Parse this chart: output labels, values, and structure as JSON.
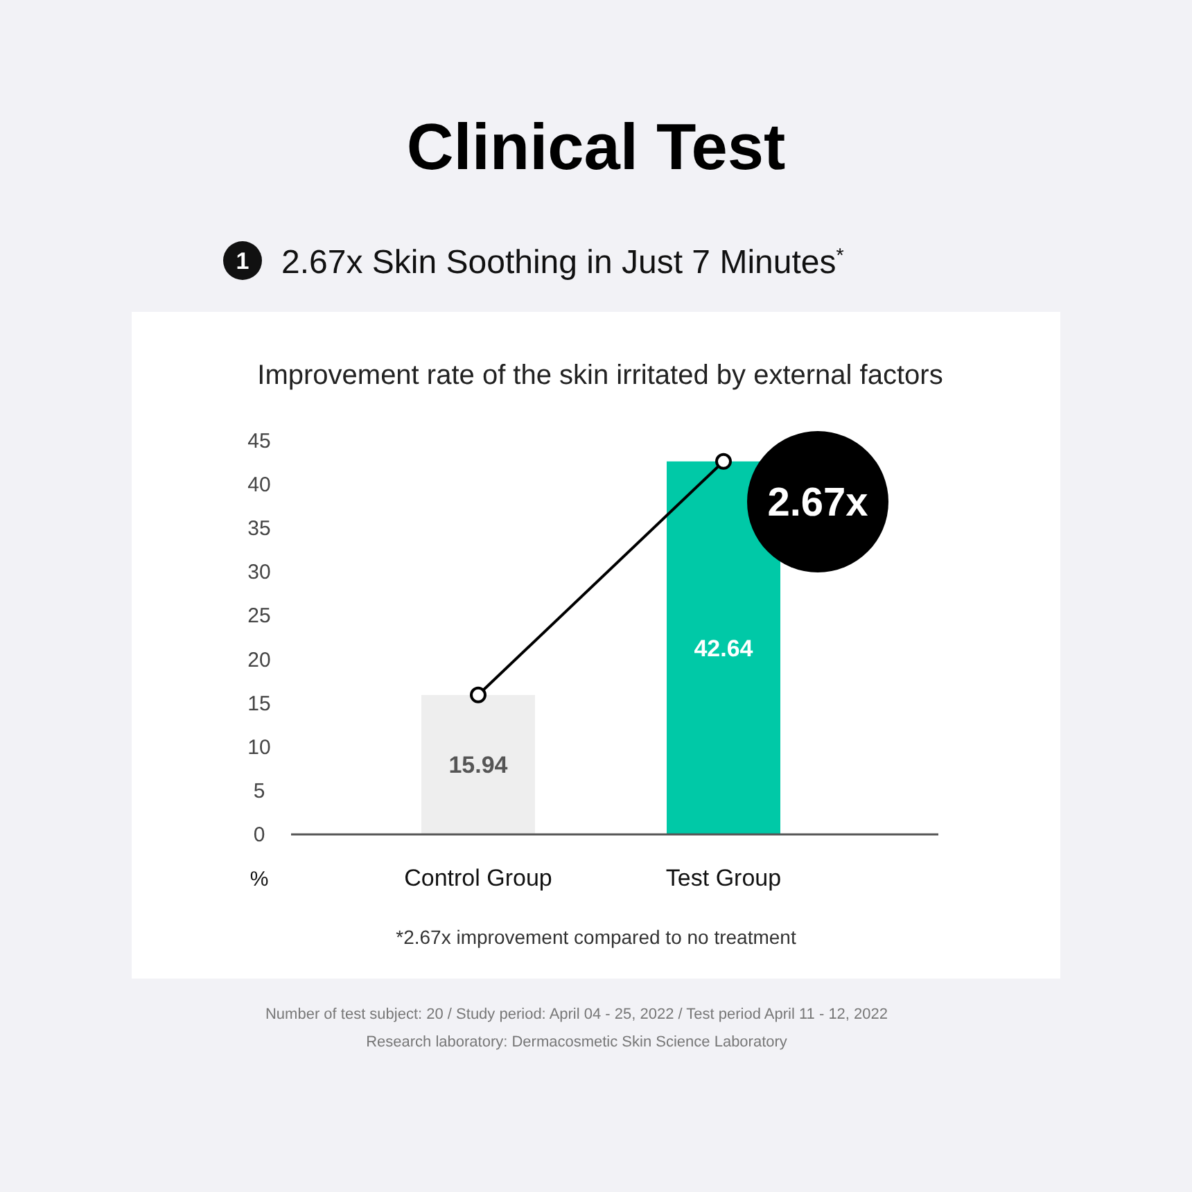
{
  "chart_data": {
    "type": "bar",
    "title": "Clinical Test",
    "subtitle": "2.67x Skin Soothing in Just 7 Minutes$^{*}$",
    "legend_title": "Improvement rate of the skin irritated by external factors",
    "ylabel": "%",
    "categories": [
      "Control Group",
      "Test Group"
    ],
    "series": [
      {
        "colors": [
          "#eeeeee",
          "#00c9a7"
        ],
        "values": [
          15.94,
          42.64
        ],
        "value_labels": [
          "15.94",
          "42.64"
        ]
      },
      {
        "type": "line",
        "color": "#000000",
        "marker": "circle",
        "values": [
          15.94,
          42.64
        ]
      }
    ],
    "ylim": [
      0,
      45
    ],
    "yticks": [
      0,
      5,
      10,
      15,
      20,
      25,
      30,
      35,
      40,
      45
    ],
    "grid": false,
    "annotations": [
      "1",
      "2.67x",
      "*2.67x improvement compared to no treatment",
      "Number of test subject: 20 / Study period: April 04 - 25, 2022 / Test period April 11 - 12, 2022",
      "Research laboratory: Dermacosmetic Skin Science Laboratory"
    ]
  }
}
